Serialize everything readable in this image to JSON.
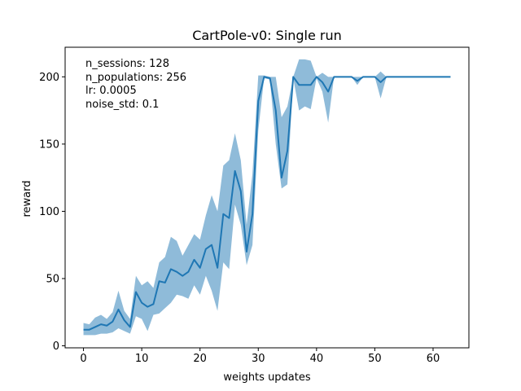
{
  "chart_data": {
    "type": "line",
    "title": "CartPole-v0: Single run",
    "xlabel": "weights updates",
    "ylabel": "reward",
    "xlim": [
      -3.15,
      66.15
    ],
    "ylim": [
      -1.5,
      222
    ],
    "xticks": [
      0,
      10,
      20,
      30,
      40,
      50,
      60
    ],
    "yticks": [
      0,
      50,
      100,
      150,
      200
    ],
    "grid": false,
    "annotations": [
      "n_sessions: 128",
      "n_populations: 256",
      "lr: 0.0005",
      "noise_std: 0.1"
    ],
    "colors": {
      "line": "#1f77b4",
      "band": "#1f77b4"
    },
    "series": [
      {
        "x": [
          0,
          1,
          2,
          3,
          4,
          5,
          6,
          7,
          8,
          9,
          10,
          11,
          12,
          13,
          14,
          15,
          16,
          17,
          18,
          19,
          20,
          21,
          22,
          23,
          24,
          25,
          26,
          27,
          28,
          29,
          30,
          31,
          32,
          33,
          34,
          35,
          36,
          37,
          38,
          39,
          40,
          41,
          42,
          43,
          44,
          45,
          46,
          47,
          48,
          49,
          50,
          51,
          52,
          53,
          54,
          55,
          56,
          57,
          58,
          59,
          60,
          61,
          62,
          63
        ],
        "mean": [
          12,
          12,
          14,
          16,
          15,
          18,
          27,
          19,
          14,
          40,
          32,
          29,
          31,
          48,
          47,
          57,
          55,
          52,
          55,
          64,
          58,
          72,
          75,
          58,
          98,
          95,
          130,
          115,
          70,
          98,
          182,
          200,
          199,
          175,
          125,
          145,
          200,
          194,
          194,
          194,
          200,
          196,
          189,
          200,
          200,
          200,
          200,
          197,
          200,
          200,
          200,
          196,
          200,
          200,
          200,
          200,
          200,
          200,
          200,
          200,
          200,
          200,
          200,
          200
        ],
        "upper": [
          17,
          16,
          21,
          23,
          20,
          25,
          41,
          26,
          20,
          52,
          45,
          48,
          43,
          62,
          66,
          81,
          78,
          67,
          75,
          83,
          79,
          97,
          112,
          100,
          134,
          138,
          158,
          138,
          90,
          128,
          201,
          201,
          200,
          200,
          170,
          178,
          200,
          213,
          213,
          212,
          200,
          203,
          200,
          200,
          200,
          200,
          200,
          200,
          200,
          200,
          200,
          204,
          200,
          200,
          200,
          200,
          200,
          200,
          200,
          200,
          200,
          200,
          200,
          200
        ],
        "lower": [
          8,
          8,
          8,
          9,
          9,
          10,
          13,
          11,
          9,
          22,
          20,
          11,
          23,
          24,
          28,
          32,
          38,
          37,
          35,
          45,
          38,
          52,
          41,
          26,
          62,
          57,
          105,
          90,
          60,
          75,
          160,
          199,
          198,
          150,
          117,
          120,
          199,
          175,
          178,
          176,
          199,
          189,
          166,
          200,
          200,
          200,
          200,
          194,
          200,
          200,
          200,
          184,
          200,
          200,
          200,
          200,
          200,
          200,
          200,
          200,
          200,
          200,
          200,
          200
        ]
      }
    ]
  }
}
